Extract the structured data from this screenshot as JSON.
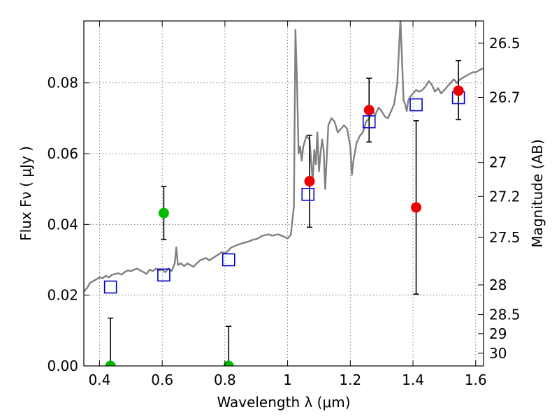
{
  "chart_data": {
    "type": "scatter",
    "title": "",
    "xlabel": "Wavelength  λ (μm)",
    "ylabel": "Flux  Fν  ( μJy )",
    "y2label": "Magnitude (AB)",
    "xlim": [
      0.35,
      1.625
    ],
    "ylim": [
      0.0,
      0.0975
    ],
    "x_ticks": [
      0.4,
      0.6,
      0.8,
      1.0,
      1.2,
      1.4,
      1.6
    ],
    "x_tick_labels": [
      "0.4",
      "0.6",
      "0.8",
      "1",
      "1.2",
      "1.4",
      "1.6"
    ],
    "y_ticks": [
      0.0,
      0.02,
      0.04,
      0.06,
      0.08
    ],
    "y_tick_labels": [
      "0.00",
      "0.02",
      "0.04",
      "0.06",
      "0.08"
    ],
    "magnitude_ticks": [
      {
        "label": "26.5",
        "flux": 0.0912
      },
      {
        "label": "26.7",
        "flux": 0.0759
      },
      {
        "label": "27",
        "flux": 0.0575
      },
      {
        "label": "27.2",
        "flux": 0.0479
      },
      {
        "label": "27.5",
        "flux": 0.0363
      },
      {
        "label": "28",
        "flux": 0.0229
      },
      {
        "label": "28.5",
        "flux": 0.0145
      },
      {
        "label": "29",
        "flux": 0.0091
      },
      {
        "label": "30",
        "flux": 0.0036
      }
    ],
    "grid": true,
    "series": [
      {
        "kind": "line",
        "color": "#808080",
        "x": [
          0.35,
          0.36,
          0.37,
          0.38,
          0.39,
          0.4,
          0.41,
          0.42,
          0.43,
          0.44,
          0.45,
          0.46,
          0.47,
          0.48,
          0.49,
          0.5,
          0.51,
          0.52,
          0.53,
          0.54,
          0.55,
          0.56,
          0.57,
          0.58,
          0.59,
          0.6,
          0.61,
          0.62,
          0.63,
          0.64,
          0.645,
          0.65,
          0.66,
          0.67,
          0.68,
          0.69,
          0.7,
          0.71,
          0.72,
          0.73,
          0.74,
          0.75,
          0.76,
          0.77,
          0.78,
          0.79,
          0.8,
          0.81,
          0.82,
          0.83,
          0.84,
          0.85,
          0.86,
          0.87,
          0.88,
          0.89,
          0.9,
          0.91,
          0.92,
          0.93,
          0.94,
          0.95,
          0.96,
          0.97,
          0.98,
          0.99,
          1.0,
          1.01,
          1.02,
          1.025,
          1.03,
          1.035,
          1.04,
          1.045,
          1.05,
          1.06,
          1.07,
          1.08,
          1.085,
          1.09,
          1.095,
          1.1,
          1.105,
          1.11,
          1.115,
          1.12,
          1.13,
          1.14,
          1.15,
          1.16,
          1.17,
          1.18,
          1.19,
          1.2,
          1.205,
          1.21,
          1.22,
          1.23,
          1.24,
          1.25,
          1.26,
          1.27,
          1.28,
          1.29,
          1.3,
          1.31,
          1.32,
          1.33,
          1.34,
          1.35,
          1.36,
          1.37,
          1.375,
          1.38,
          1.385,
          1.39,
          1.4,
          1.41,
          1.42,
          1.43,
          1.44,
          1.45,
          1.46,
          1.47,
          1.48,
          1.49,
          1.5,
          1.51,
          1.52,
          1.53,
          1.54,
          1.55,
          1.56,
          1.57,
          1.58,
          1.59,
          1.6,
          1.61,
          1.62,
          1.625
        ],
        "y": [
          0.021,
          0.022,
          0.0235,
          0.024,
          0.0245,
          0.025,
          0.0248,
          0.0255,
          0.025,
          0.0258,
          0.026,
          0.0262,
          0.0258,
          0.0265,
          0.027,
          0.0268,
          0.0272,
          0.0275,
          0.027,
          0.0265,
          0.026,
          0.0272,
          0.0268,
          0.0275,
          0.027,
          0.0272,
          0.0265,
          0.0275,
          0.0268,
          0.029,
          0.0335,
          0.0285,
          0.029,
          0.0282,
          0.029,
          0.0285,
          0.028,
          0.029,
          0.0298,
          0.0302,
          0.0305,
          0.0298,
          0.0304,
          0.031,
          0.0315,
          0.0322,
          0.0318,
          0.0325,
          0.0335,
          0.0338,
          0.0342,
          0.0345,
          0.0348,
          0.035,
          0.0353,
          0.0357,
          0.0358,
          0.0363,
          0.0368,
          0.037,
          0.0372,
          0.0368,
          0.037,
          0.0372,
          0.0368,
          0.0365,
          0.036,
          0.037,
          0.045,
          0.095,
          0.08,
          0.06,
          0.062,
          0.058,
          0.062,
          0.065,
          0.064,
          0.052,
          0.061,
          0.057,
          0.066,
          0.055,
          0.06,
          0.064,
          0.061,
          0.05,
          0.068,
          0.07,
          0.069,
          0.066,
          0.067,
          0.068,
          0.067,
          0.062,
          0.054,
          0.058,
          0.063,
          0.065,
          0.066,
          0.069,
          0.07,
          0.072,
          0.071,
          0.073,
          0.072,
          0.0705,
          0.07,
          0.072,
          0.074,
          0.08,
          0.098,
          0.075,
          0.074,
          0.072,
          0.075,
          0.076,
          0.077,
          0.078,
          0.0775,
          0.078,
          0.079,
          0.0805,
          0.0795,
          0.0775,
          0.0785,
          0.077,
          0.078,
          0.079,
          0.08,
          0.081,
          0.08,
          0.081,
          0.0815,
          0.082,
          0.0825,
          0.083,
          0.083,
          0.0835,
          0.084,
          0.084
        ]
      },
      {
        "kind": "markers",
        "marker": "square",
        "color": "#0000cc",
        "x": [
          0.435,
          0.605,
          0.812,
          1.065,
          1.26,
          1.41,
          1.545
        ],
        "y": [
          0.0223,
          0.0257,
          0.03,
          0.0485,
          0.069,
          0.0738,
          0.0758
        ]
      },
      {
        "kind": "markers",
        "marker": "circle",
        "color": "#00bb00",
        "x": [
          0.435,
          0.605,
          0.812
        ],
        "y": [
          0.0,
          0.0432,
          0.0
        ],
        "err_low": [
          0.0,
          0.0075,
          0.0
        ],
        "err_high": [
          0.0135,
          0.0075,
          0.0112
        ]
      },
      {
        "kind": "markers",
        "marker": "circle",
        "color": "#ee0000",
        "x": [
          1.07,
          1.26,
          1.41,
          1.545
        ],
        "y": [
          0.0522,
          0.0723,
          0.0448,
          0.0778
        ],
        "err_low": [
          0.013,
          0.009,
          0.0245,
          0.0082
        ],
        "err_high": [
          0.013,
          0.009,
          0.0245,
          0.0085
        ]
      }
    ]
  }
}
